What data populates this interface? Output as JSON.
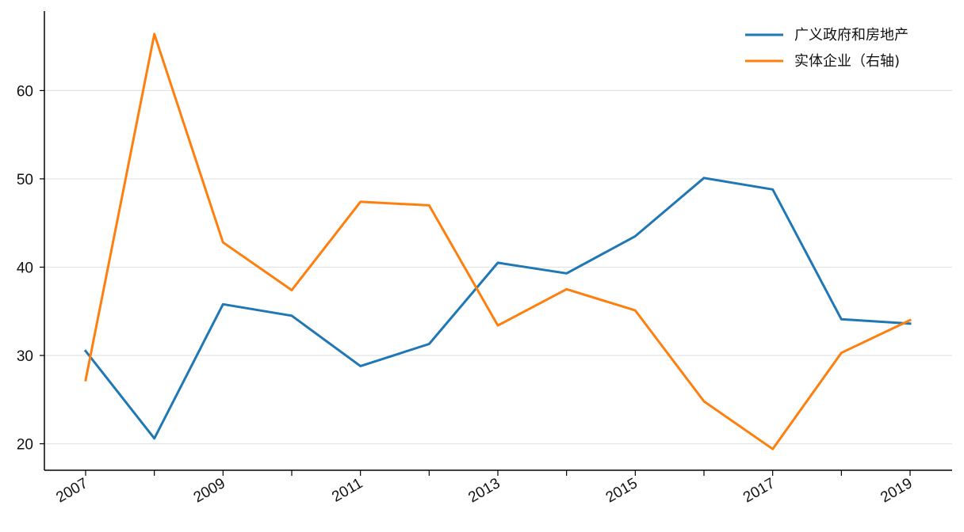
{
  "chart_data": {
    "type": "line",
    "title": "",
    "xlabel": "",
    "ylabel": "",
    "x": [
      2007,
      2008,
      2009,
      2010,
      2011,
      2012,
      2013,
      2014,
      2015,
      2016,
      2017,
      2018,
      2019
    ],
    "x_tick_labels": [
      "2007",
      "2009",
      "2011",
      "2013",
      "2015",
      "2017",
      "2019"
    ],
    "ylim": [
      17,
      69
    ],
    "y_ticks": [
      20,
      30,
      40,
      50,
      60
    ],
    "grid": "horizontal",
    "legend_position": "top-right",
    "series": [
      {
        "name": "广义政府和房地产",
        "color": "#1f77b4",
        "values": [
          30.5,
          20.6,
          35.8,
          34.5,
          28.8,
          31.3,
          40.5,
          39.3,
          43.5,
          50.1,
          48.8,
          34.1,
          33.6
        ]
      },
      {
        "name": "实体企业（右轴)",
        "color": "#ff7f0e",
        "values": [
          27.2,
          66.4,
          42.8,
          37.4,
          47.4,
          47.0,
          33.4,
          37.5,
          35.1,
          24.8,
          19.4,
          30.3,
          34.0
        ]
      }
    ]
  }
}
